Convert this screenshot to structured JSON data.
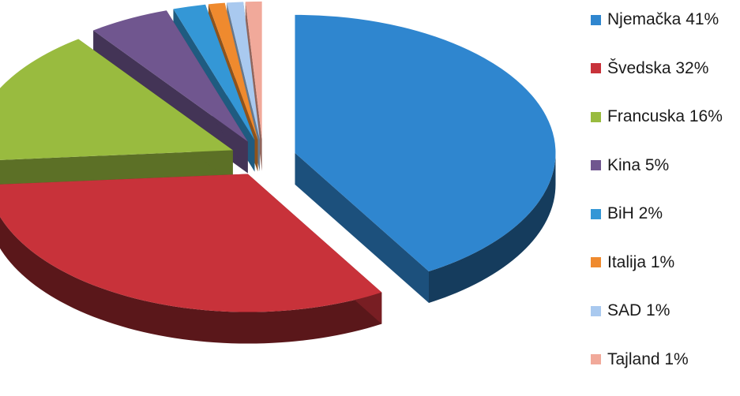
{
  "chart_data": {
    "type": "pie",
    "style": "3d-exploded",
    "title": "",
    "legend_position": "right",
    "slices": [
      {
        "label": "Njemačka 41%",
        "name": "Njemačka",
        "value": 41,
        "color": "#2f86cf"
      },
      {
        "label": "Švedska 32%",
        "name": "Švedska",
        "value": 32,
        "color": "#c8323a"
      },
      {
        "label": "Francuska 16%",
        "name": "Francuska",
        "value": 16,
        "color": "#99bb3f"
      },
      {
        "label": "Kina 5%",
        "name": "Kina",
        "value": 5,
        "color": "#70568f"
      },
      {
        "label": "BiH 2%",
        "name": "BiH",
        "value": 2,
        "color": "#3497d6"
      },
      {
        "label": "Italija 1%",
        "name": "Italija",
        "value": 1,
        "color": "#ef8a2e"
      },
      {
        "label": "SAD 1%",
        "name": "SAD",
        "value": 1,
        "color": "#a9c9ef"
      },
      {
        "label": "Tajland 1%",
        "name": "Tajland",
        "value": 1,
        "color": "#f1a99a"
      }
    ]
  }
}
